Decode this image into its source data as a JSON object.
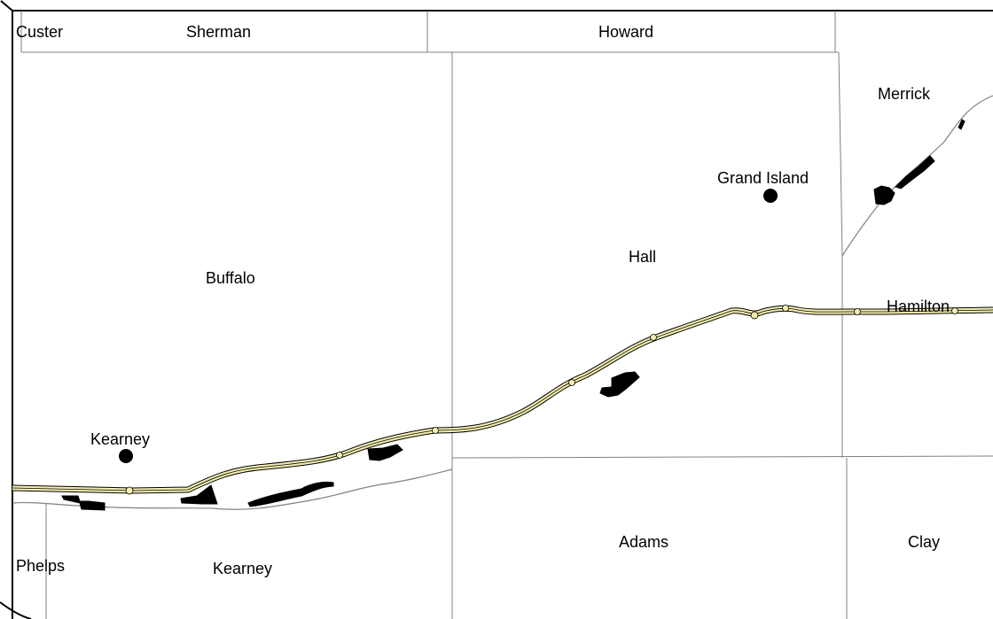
{
  "map": {
    "counties": {
      "custer": "Custer",
      "sherman": "Sherman",
      "howard": "Howard",
      "merrick": "Merrick",
      "buffalo": "Buffalo",
      "hall": "Hall",
      "hamilton": "Hamilton",
      "phelps": "Phelps",
      "kearney": "Kearney",
      "adams": "Adams",
      "clay": "Clay"
    },
    "cities": {
      "grand_island": "Grand Island",
      "kearney": "Kearney"
    },
    "colors": {
      "highway_fill": "#f3eeb0",
      "boundary": "#808080",
      "urban": "#000000"
    }
  }
}
